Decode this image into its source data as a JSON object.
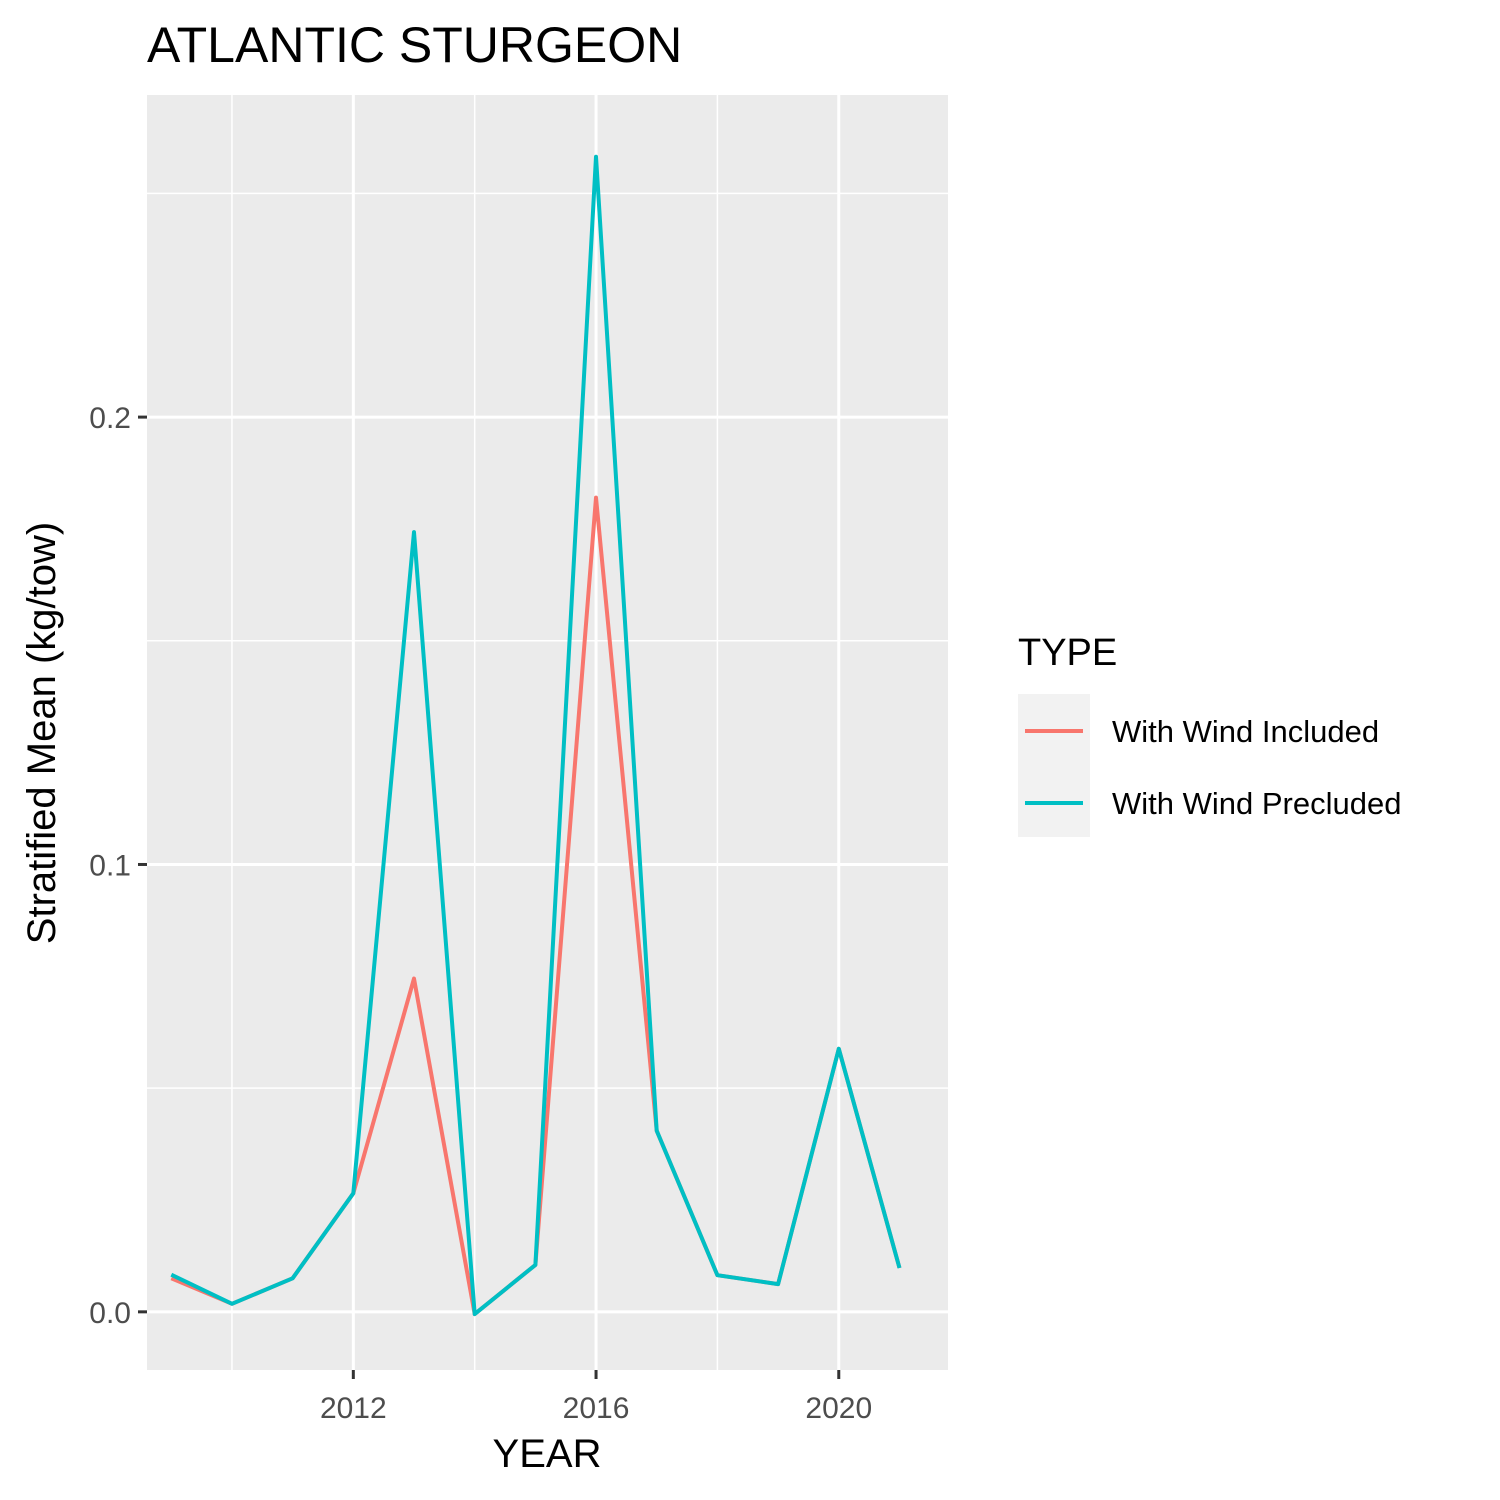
{
  "chart_data": {
    "type": "line",
    "title": "ATLANTIC STURGEON",
    "xlabel": "YEAR",
    "ylabel": "Stratified Mean (kg/tow)",
    "xlim": [
      2008.6,
      2021.8
    ],
    "ylim": [
      -0.013,
      0.272
    ],
    "x_ticks": [
      2012,
      2016,
      2020
    ],
    "x_tick_labels": [
      "2012",
      "2016",
      "2020"
    ],
    "x_minor_ticks": [
      2010,
      2014,
      2018
    ],
    "y_ticks": [
      0.0,
      0.1,
      0.2
    ],
    "y_tick_labels": [
      "0.0",
      "0.1",
      "0.2"
    ],
    "y_minor_ticks": [
      0.05,
      0.15,
      0.25
    ],
    "grid": true,
    "legend": {
      "title": "TYPE",
      "position": "right"
    },
    "series": [
      {
        "name": "With Wind Included",
        "color": "#F8766D",
        "x": [
          2009,
          2010,
          2011,
          2012,
          2013,
          2014,
          2015,
          2016,
          2017,
          2018,
          2019,
          2020,
          2021
        ],
        "y": [
          0.0075,
          0.0018,
          0.0075,
          0.0265,
          0.0745,
          -0.0005,
          0.0105,
          0.182,
          0.0405,
          0.0082,
          0.0062,
          0.0588,
          0.0098
        ]
      },
      {
        "name": "With Wind Precluded",
        "color": "#00BFC4",
        "x": [
          2009,
          2010,
          2011,
          2012,
          2013,
          2014,
          2015,
          2016,
          2017,
          2018,
          2019,
          2020,
          2021
        ],
        "y": [
          0.0083,
          0.0018,
          0.0075,
          0.0265,
          0.1743,
          -0.0005,
          0.0105,
          0.2582,
          0.0405,
          0.0082,
          0.0062,
          0.0588,
          0.0098
        ]
      }
    ]
  }
}
